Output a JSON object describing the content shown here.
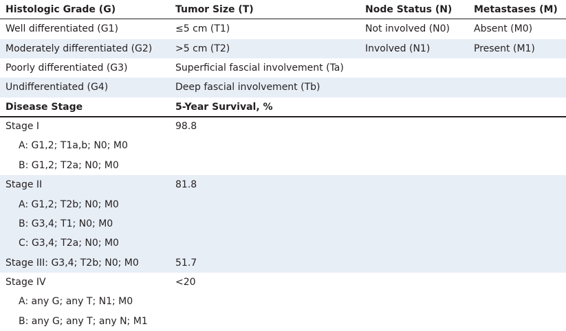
{
  "grade_table": {
    "header": [
      "Histologic Grade (G)",
      "Tumor Size (T)",
      "Node Status (N)",
      "Metastases (M)"
    ],
    "rows": [
      [
        "Well differentiated (G1)",
        "≤5 cm (T1)",
        "Not involved (N0)",
        "Absent (M0)"
      ],
      [
        "Moderately differentiated (G2)",
        ">5 cm (T2)",
        "Involved (N1)",
        "Present (M1)"
      ],
      [
        "Poorly differentiated (G3)",
        "Superficial fascial involvement (Ta)"
      ],
      [
        "Undifferentiated (G4)",
        "Deep fascial involvement (Tb)"
      ]
    ]
  },
  "stage_table": {
    "header": [
      "Disease Stage",
      "5-Year Survival, %"
    ],
    "stages": [
      {
        "lines": [
          "Stage I",
          "A: G1,2; T1a,b; N0; M0",
          "B: G1,2; T2a; N0; M0"
        ],
        "survival": "98.8"
      },
      {
        "lines": [
          "Stage II",
          "A: G1,2; T2b; N0; M0",
          "B: G3,4; T1; N0; M0",
          "C: G3,4; T2a; N0; M0"
        ],
        "survival": "81.8"
      },
      {
        "lines": [
          "Stage III: G3,4; T2b; N0; M0"
        ],
        "survival": "51.7"
      },
      {
        "lines": [
          "Stage IV",
          "A: any G; any T; N1; M0",
          "B: any G; any T; any N; M1"
        ],
        "survival": "<20"
      }
    ]
  }
}
